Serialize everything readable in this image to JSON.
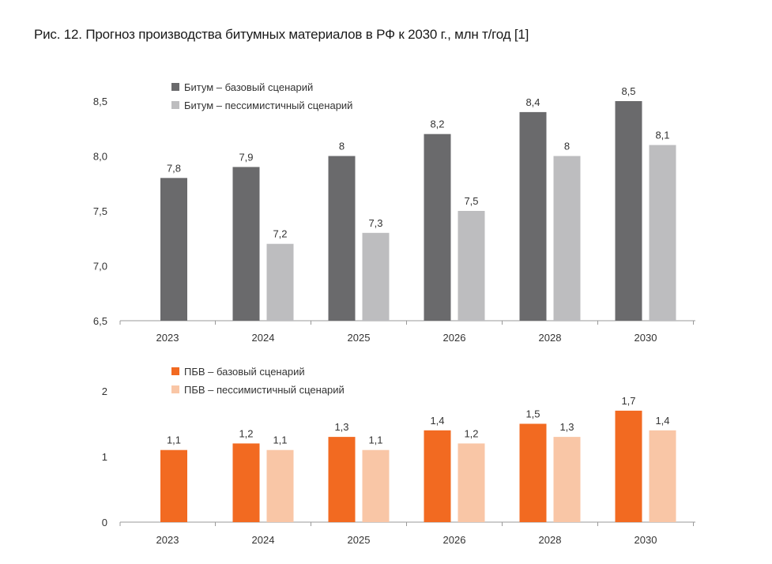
{
  "title": "Рис. 12. Прогноз производства битумных материалов в РФ к 2030 г., млн т/год [1]",
  "colors": {
    "dark": "#6a6a6c",
    "light": "#bdbdbf",
    "orange": "#f26a21",
    "peach": "#f9c6a6",
    "axis": "#999999"
  },
  "chart_data": [
    {
      "type": "bar",
      "categories": [
        "2023",
        "2024",
        "2025",
        "2026",
        "2028",
        "2030"
      ],
      "series": [
        {
          "name": "Битум – базовый сценарий",
          "values": [
            7.8,
            7.9,
            8.0,
            8.2,
            8.4,
            8.5
          ],
          "labels": [
            "7,8",
            "7,9",
            "8",
            "8,2",
            "8,4",
            "8,5"
          ]
        },
        {
          "name": "Битум – пессимистичный сценарий",
          "values": [
            null,
            7.2,
            7.3,
            7.5,
            8.0,
            8.1
          ],
          "labels": [
            "",
            "7,2",
            "7,3",
            "7,5",
            "8",
            "8,1"
          ]
        }
      ],
      "ylim": [
        6.5,
        8.5
      ],
      "yticks": [
        6.5,
        7.0,
        7.5,
        8.0,
        8.5
      ],
      "ytick_labels": [
        "6,5",
        "7,0",
        "7,5",
        "8,0",
        "8,5"
      ]
    },
    {
      "type": "bar",
      "categories": [
        "2023",
        "2024",
        "2025",
        "2026",
        "2028",
        "2030"
      ],
      "series": [
        {
          "name": "ПБВ – базовый сценарий",
          "values": [
            1.1,
            1.2,
            1.3,
            1.4,
            1.5,
            1.7
          ],
          "labels": [
            "1,1",
            "1,2",
            "1,3",
            "1,4",
            "1,5",
            "1,7"
          ]
        },
        {
          "name": "ПБВ – пессимистичный сценарий",
          "values": [
            null,
            1.1,
            1.1,
            1.2,
            1.3,
            1.4
          ],
          "labels": [
            "",
            "1,1",
            "1,1",
            "1,2",
            "1,3",
            "1,4"
          ]
        }
      ],
      "ylim": [
        0,
        2
      ],
      "yticks": [
        0,
        1,
        2
      ],
      "ytick_labels": [
        "0",
        "1",
        "2"
      ]
    }
  ]
}
